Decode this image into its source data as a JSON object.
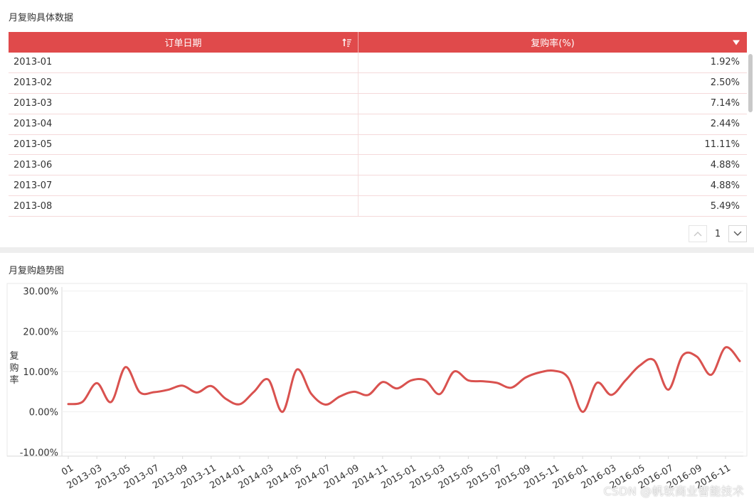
{
  "table_panel": {
    "title": "月复购具体数据",
    "columns": [
      {
        "label": "订单日期",
        "icon": "sort-descending-icon"
      },
      {
        "label": "复购率(%)",
        "icon": "chevron-down-icon"
      }
    ],
    "rows": [
      {
        "date": "2013-01",
        "rate": "1.92%"
      },
      {
        "date": "2013-02",
        "rate": "2.50%"
      },
      {
        "date": "2013-03",
        "rate": "7.14%"
      },
      {
        "date": "2013-04",
        "rate": "2.44%"
      },
      {
        "date": "2013-05",
        "rate": "11.11%"
      },
      {
        "date": "2013-06",
        "rate": "4.88%"
      },
      {
        "date": "2013-07",
        "rate": "4.88%"
      },
      {
        "date": "2013-08",
        "rate": "5.49%"
      }
    ],
    "pagination": {
      "page": "1"
    }
  },
  "chart_panel": {
    "title": "月复购趋势图"
  },
  "watermark": "CSDN @帆软商业智能技术",
  "colors": {
    "accent": "#e04a4b",
    "line": "#d9524f",
    "grid": "#efefef"
  },
  "chart_data": {
    "type": "line",
    "title": "",
    "xlabel": "",
    "ylabel": "复购率",
    "x": [
      "2013-01",
      "2013-02",
      "2013-03",
      "2013-04",
      "2013-05",
      "2013-06",
      "2013-07",
      "2013-08",
      "2013-09",
      "2013-10",
      "2013-11",
      "2013-12",
      "2014-01",
      "2014-02",
      "2014-03",
      "2014-04",
      "2014-05",
      "2014-06",
      "2014-07",
      "2014-08",
      "2014-09",
      "2014-10",
      "2014-11",
      "2014-12",
      "2015-01",
      "2015-02",
      "2015-03",
      "2015-04",
      "2015-05",
      "2015-06",
      "2015-07",
      "2015-08",
      "2015-09",
      "2015-10",
      "2015-11",
      "2015-12",
      "2016-01",
      "2016-02",
      "2016-03",
      "2016-04",
      "2016-05",
      "2016-06",
      "2016-07",
      "2016-08",
      "2016-09",
      "2016-10",
      "2016-11",
      "2016-12"
    ],
    "x_tick_labels": [
      "2013-01",
      "2013-03",
      "2013-05",
      "2013-07",
      "2013-09",
      "2013-11",
      "2014-01",
      "2014-03",
      "2014-05",
      "2014-07",
      "2014-09",
      "2014-11",
      "2015-01",
      "2015-03",
      "2015-05",
      "2015-07",
      "2015-09",
      "2015-11",
      "2016-01",
      "2016-03",
      "2016-05",
      "2016-07",
      "2016-09",
      "2016-11"
    ],
    "x_tick_labels_visible": [
      "01",
      "2013-03",
      "2013-05",
      "2013-07",
      "2013-09",
      "2013-11",
      "2014-01",
      "2014-03",
      "2014-05",
      "2014-07",
      "2014-09",
      "2014-11",
      "2015-01",
      "2015-03",
      "2015-05",
      "2015-07",
      "2015-09",
      "2015-11",
      "2016-01",
      "2016-03",
      "2016-05",
      "2016-07",
      "2016-09",
      "2016-11"
    ],
    "y_ticks": [
      "30.00%",
      "20.00%",
      "10.00%",
      "0.00%",
      "-10.00%"
    ],
    "y_tick_values": [
      30,
      20,
      10,
      0,
      -10
    ],
    "ylim": [
      -11,
      31
    ],
    "series": [
      {
        "values": [
          1.92,
          2.5,
          7.14,
          2.44,
          11.11,
          4.88,
          4.88,
          5.49,
          6.5,
          4.8,
          6.4,
          3.3,
          1.9,
          5.0,
          8.0,
          0.0,
          10.5,
          4.5,
          1.8,
          3.8,
          5.0,
          4.2,
          7.4,
          5.8,
          7.8,
          7.8,
          4.4,
          10.0,
          7.8,
          7.6,
          7.2,
          6.0,
          8.5,
          9.8,
          10.2,
          8.4,
          0.0,
          7.2,
          4.2,
          7.8,
          11.5,
          12.8,
          5.5,
          14.0,
          13.7,
          9.2,
          16.0,
          12.6
        ]
      }
    ],
    "grid": true,
    "legend": "none"
  }
}
